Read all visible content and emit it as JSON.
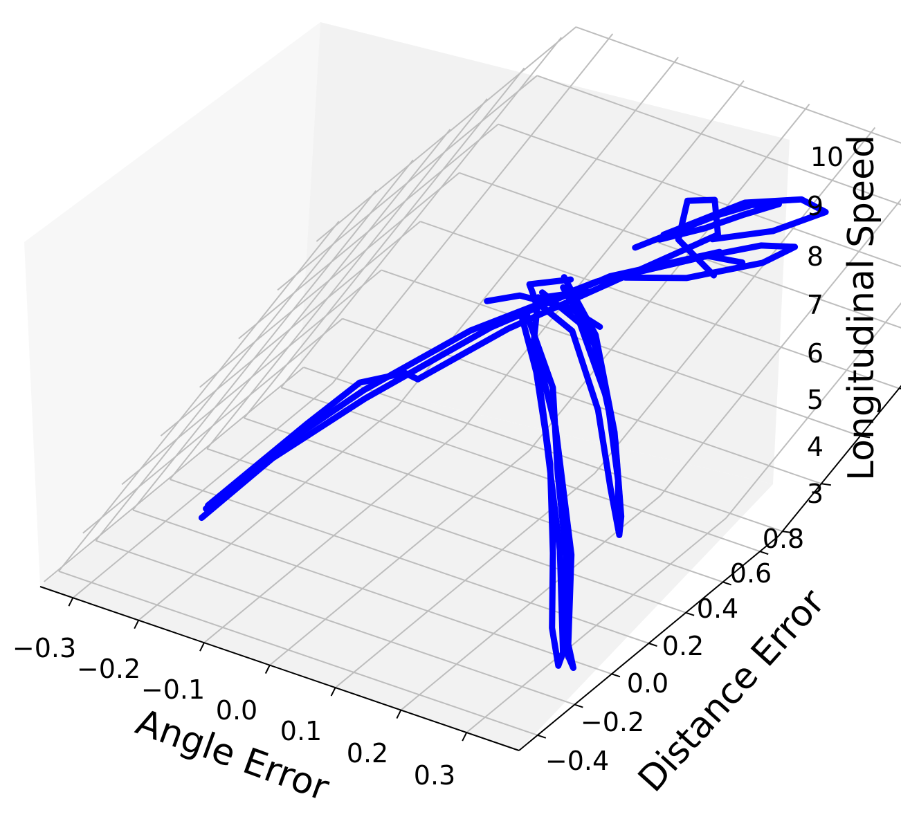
{
  "chart_data": {
    "type": "line3d",
    "title": "",
    "xlabel": "Angle Error",
    "ylabel": "Distance Error",
    "zlabel": "Longitudinal Speed",
    "xlim": [
      -0.35,
      0.38
    ],
    "ylim": [
      -0.5,
      0.9
    ],
    "zlim": [
      2.9,
      10.1
    ],
    "xticks": [
      "−0.3",
      "−0.2",
      "−0.1",
      "0.0",
      "0.1",
      "0.2",
      "0.3"
    ],
    "yticks": [
      "−0.4",
      "−0.2",
      "0.0",
      "0.2",
      "0.4",
      "0.6",
      "0.8"
    ],
    "zticks": [
      "3",
      "4",
      "5",
      "6",
      "7",
      "8",
      "9",
      "10"
    ],
    "grid": true,
    "colors": {
      "line": "#0000ff",
      "pane_left": "#f7f7f7",
      "pane_back": "#f2f2f2",
      "pane_floor": "#f2f2f2",
      "grid": "#bdbdbd"
    },
    "series": [
      {
        "loops": [
          [
            [
              -0.26,
              -0.05,
              3.5
            ],
            [
              -0.24,
              0.05,
              4.5
            ],
            [
              -0.2,
              0.15,
              5.6
            ],
            [
              -0.14,
              0.28,
              6.7
            ],
            [
              -0.05,
              0.45,
              7.6
            ],
            [
              0.05,
              0.55,
              8.3
            ],
            [
              0.1,
              0.52,
              8.5
            ]
          ],
          [
            [
              -0.255,
              -0.07,
              3.4
            ],
            [
              -0.235,
              0.03,
              4.4
            ],
            [
              -0.19,
              0.14,
              5.5
            ],
            [
              -0.12,
              0.3,
              6.8
            ],
            [
              -0.04,
              0.47,
              7.7
            ],
            [
              0.06,
              0.56,
              8.4
            ]
          ],
          [
            [
              -0.26,
              -0.06,
              3.6
            ],
            [
              -0.23,
              0.08,
              5.0
            ],
            [
              -0.21,
              0.12,
              5.8
            ],
            [
              -0.17,
              0.18,
              6.0
            ],
            [
              -0.15,
              0.2,
              5.9
            ],
            [
              -0.1,
              0.32,
              6.8
            ],
            [
              -0.02,
              0.48,
              7.8
            ],
            [
              0.04,
              0.58,
              8.6
            ],
            [
              0.0,
              0.62,
              9.0
            ],
            [
              -0.03,
              0.6,
              8.9
            ],
            [
              0.0,
              0.55,
              8.4
            ],
            [
              0.08,
              0.5,
              8.2
            ]
          ],
          [
            [
              -0.1,
              0.35,
              7.0
            ],
            [
              0.0,
              0.2,
              6.5
            ],
            [
              0.1,
              0.05,
              5.8
            ],
            [
              0.2,
              -0.1,
              4.9
            ],
            [
              0.28,
              -0.22,
              4.1
            ],
            [
              0.33,
              -0.3,
              3.8
            ],
            [
              0.32,
              -0.26,
              3.9
            ],
            [
              0.2,
              -0.02,
              4.7
            ],
            [
              0.05,
              0.2,
              5.8
            ],
            [
              -0.05,
              0.32,
              6.6
            ],
            [
              -0.1,
              0.4,
              7.2
            ]
          ],
          [
            [
              -0.1,
              0.35,
              7.1
            ],
            [
              0.02,
              0.18,
              6.6
            ],
            [
              0.12,
              0.02,
              5.8
            ],
            [
              0.22,
              -0.12,
              5.0
            ],
            [
              0.3,
              -0.24,
              4.2
            ],
            [
              0.35,
              -0.3,
              3.85
            ],
            [
              0.33,
              -0.28,
              3.95
            ],
            [
              0.22,
              -0.05,
              4.8
            ],
            [
              0.06,
              0.2,
              5.9
            ],
            [
              -0.06,
              0.34,
              6.7
            ]
          ],
          [
            [
              -0.1,
              0.38,
              7.2
            ],
            [
              -0.02,
              0.3,
              7.2
            ],
            [
              0.1,
              0.12,
              6.7
            ],
            [
              0.2,
              -0.02,
              6.0
            ],
            [
              0.26,
              -0.08,
              5.5
            ],
            [
              0.24,
              -0.02,
              5.6
            ],
            [
              0.15,
              0.12,
              6.3
            ],
            [
              0.02,
              0.3,
              7.1
            ],
            [
              -0.08,
              0.4,
              7.5
            ]
          ],
          [
            [
              -0.1,
              0.4,
              7.3
            ],
            [
              -0.02,
              0.32,
              7.3
            ],
            [
              0.1,
              0.15,
              6.8
            ],
            [
              0.2,
              0.0,
              6.1
            ],
            [
              0.25,
              -0.07,
              5.6
            ],
            [
              0.23,
              -0.01,
              5.7
            ],
            [
              0.14,
              0.13,
              6.4
            ],
            [
              0.01,
              0.32,
              7.2
            ],
            [
              -0.09,
              0.42,
              7.6
            ]
          ],
          [
            [
              -0.15,
              0.3,
              7.2
            ],
            [
              -0.12,
              0.35,
              7.3
            ],
            [
              -0.05,
              0.4,
              7.2
            ],
            [
              0.0,
              0.42,
              7.0
            ]
          ],
          [
            [
              -0.05,
              0.45,
              7.6
            ],
            [
              0.05,
              0.55,
              8.3
            ],
            [
              0.1,
              0.6,
              8.6
            ],
            [
              0.14,
              0.62,
              8.7
            ],
            [
              0.12,
              0.58,
              8.4
            ],
            [
              0.05,
              0.5,
              8.0
            ],
            [
              -0.02,
              0.46,
              7.8
            ]
          ],
          [
            [
              -0.04,
              0.5,
              8.2
            ],
            [
              0.02,
              0.58,
              8.9
            ],
            [
              0.05,
              0.6,
              9.2
            ],
            [
              0.08,
              0.62,
              9.3
            ],
            [
              0.05,
              0.6,
              9.0
            ],
            [
              0.02,
              0.56,
              8.7
            ],
            [
              -0.02,
              0.52,
              8.4
            ]
          ],
          [
            [
              -0.02,
              0.52,
              8.5
            ],
            [
              0.04,
              0.6,
              9.2
            ],
            [
              0.1,
              0.65,
              9.4
            ],
            [
              0.14,
              0.66,
              9.3
            ],
            [
              0.1,
              0.6,
              8.9
            ],
            [
              0.04,
              0.55,
              8.6
            ]
          ],
          [
            [
              -0.08,
              0.42,
              7.6
            ],
            [
              -0.12,
              0.36,
              7.5
            ],
            [
              -0.1,
              0.36,
              7.3
            ],
            [
              -0.05,
              0.42,
              7.5
            ]
          ]
        ]
      }
    ]
  }
}
